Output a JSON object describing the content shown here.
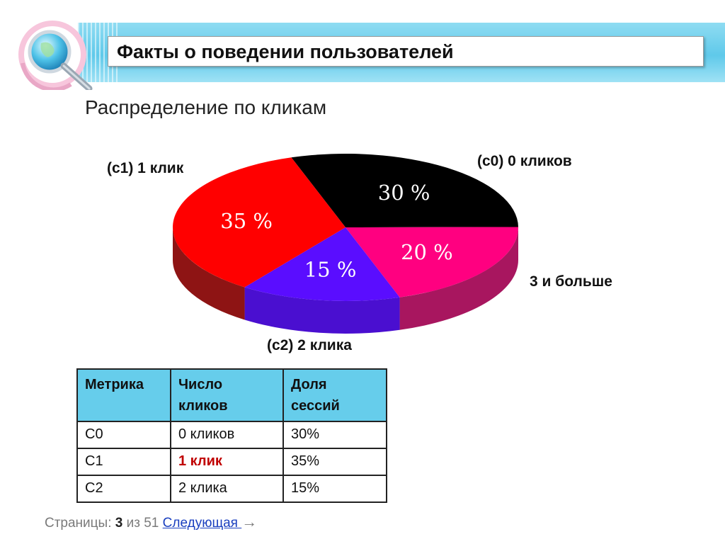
{
  "header": {
    "title": "Факты о поведении пользователей"
  },
  "subtitle": "Распределение по кликам",
  "chart_data": {
    "type": "pie",
    "categories": [
      "(с0) 0 кликов",
      "3 и больше",
      "(с2) 2 клика",
      "(с1) 1 клик"
    ],
    "values": [
      30,
      20,
      15,
      35
    ],
    "value_labels": [
      "30 %",
      "20 %",
      "15 %",
      "35 %"
    ],
    "colors": [
      "#000000",
      "#ff0080",
      "#5a0dff",
      "#ff0000"
    ],
    "side_colors": [
      "#111111",
      "#a8165f",
      "#4a0fd0",
      "#8e1414"
    ],
    "legend": "none",
    "style": "3d"
  },
  "table": {
    "headers": [
      "Метрика",
      "Число кликов",
      "Доля сессий"
    ],
    "header_lines": [
      [
        "Метрика"
      ],
      [
        "Число",
        "кликов"
      ],
      [
        "Доля",
        "сессий"
      ]
    ],
    "rows": [
      [
        "С0",
        "0 кликов",
        "30%"
      ],
      [
        "С1",
        "1 клик",
        "35%"
      ],
      [
        "С2",
        "2 клика",
        "15%"
      ]
    ]
  },
  "pager": {
    "prefix": "Страницы:",
    "current": "3",
    "of": "из 51",
    "next_label": "Следующая ",
    "arrow": "→"
  }
}
